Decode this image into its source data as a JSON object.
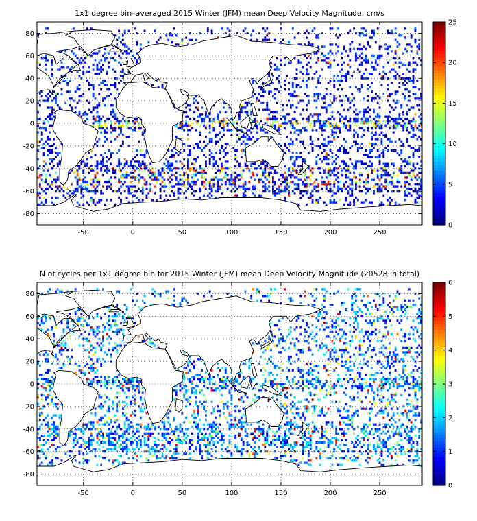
{
  "chart_data": [
    {
      "type": "heatmap",
      "title": "1x1 degree bin–averaged 2015 Winter (JFM) mean Deep Velocity Magnitude, cm/s",
      "xlabel": "",
      "ylabel": "",
      "xlim": [
        -97,
        293
      ],
      "ylim": [
        -90,
        90
      ],
      "x_ticks": [
        -50,
        0,
        50,
        100,
        150,
        200,
        250
      ],
      "x_tick_labels": [
        "-50",
        "0",
        "50",
        "100",
        "150",
        "200",
        "250"
      ],
      "y_ticks": [
        80,
        60,
        40,
        20,
        0,
        -20,
        -40,
        -60,
        -80
      ],
      "y_tick_labels": [
        "80",
        "60",
        "40",
        "20",
        "0",
        "-20",
        "-40",
        "-60",
        "-80"
      ],
      "grid": "dotted",
      "colormap": "jet",
      "colorbar": {
        "min": 0,
        "max": 25,
        "ticks": [
          0,
          5,
          10,
          15,
          20,
          25
        ],
        "tick_labels": [
          "0",
          "5",
          "10",
          "15",
          "20",
          "25"
        ]
      },
      "data_summary": "Scattered 1x1 degree ocean bins; most bins 0-5 cm/s (blue), elevated values (10-25 cm/s) along the equator and the Southern Ocean near 40-55S",
      "sample_bins": [
        {
          "lon": -40,
          "lat": 40,
          "value": 3
        },
        {
          "lon": -25,
          "lat": 55,
          "value": 4
        },
        {
          "lon": 160,
          "lat": 40,
          "value": 2
        },
        {
          "lon": 200,
          "lat": 20,
          "value": 2
        },
        {
          "lon": 60,
          "lat": 0,
          "value": 12
        },
        {
          "lon": 180,
          "lat": 0,
          "value": 14
        },
        {
          "lon": -30,
          "lat": -45,
          "value": 18
        },
        {
          "lon": 30,
          "lat": -45,
          "value": 20
        },
        {
          "lon": 150,
          "lat": -50,
          "value": 15
        },
        {
          "lon": 230,
          "lat": -55,
          "value": 12
        }
      ]
    },
    {
      "type": "heatmap",
      "title": "N of cycles per 1x1 degree bin for 2015 Winter (JFM) mean Deep Velocity Magnitude (20528 in total)",
      "xlabel": "",
      "ylabel": "",
      "xlim": [
        -97,
        293
      ],
      "ylim": [
        -90,
        90
      ],
      "x_ticks": [
        -50,
        0,
        50,
        100,
        150,
        200,
        250
      ],
      "x_tick_labels": [
        "-50",
        "0",
        "50",
        "100",
        "150",
        "200",
        "250"
      ],
      "y_ticks": [
        80,
        60,
        40,
        20,
        0,
        -20,
        -40,
        -60,
        -80
      ],
      "y_tick_labels": [
        "80",
        "60",
        "40",
        "20",
        "0",
        "-20",
        "-40",
        "-60",
        "-80"
      ],
      "grid": "dotted",
      "colormap": "jet",
      "colorbar": {
        "min": 0,
        "max": 6,
        "ticks": [
          0,
          1,
          2,
          3,
          4,
          5,
          6
        ],
        "tick_labels": [
          "0",
          "1",
          "2",
          "3",
          "4",
          "5",
          "6"
        ]
      },
      "data_summary": "Most bins hold 1-2 cycles; scattered bins with 4-6 cycles in the North Atlantic, Arabian Sea, Bay of Bengal and North Pacific",
      "sample_bins": [
        {
          "lon": -40,
          "lat": 30,
          "value": 2
        },
        {
          "lon": 5,
          "lat": 40,
          "value": 6
        },
        {
          "lon": 65,
          "lat": 15,
          "value": 5
        },
        {
          "lon": 88,
          "lat": 15,
          "value": 6
        },
        {
          "lon": 150,
          "lat": 35,
          "value": 4
        },
        {
          "lon": 210,
          "lat": 40,
          "value": 5
        },
        {
          "lon": 180,
          "lat": 0,
          "value": 2
        },
        {
          "lon": 0,
          "lat": -40,
          "value": 1
        },
        {
          "lon": 120,
          "lat": -50,
          "value": 1
        },
        {
          "lon": 250,
          "lat": -30,
          "value": 2
        }
      ]
    }
  ]
}
